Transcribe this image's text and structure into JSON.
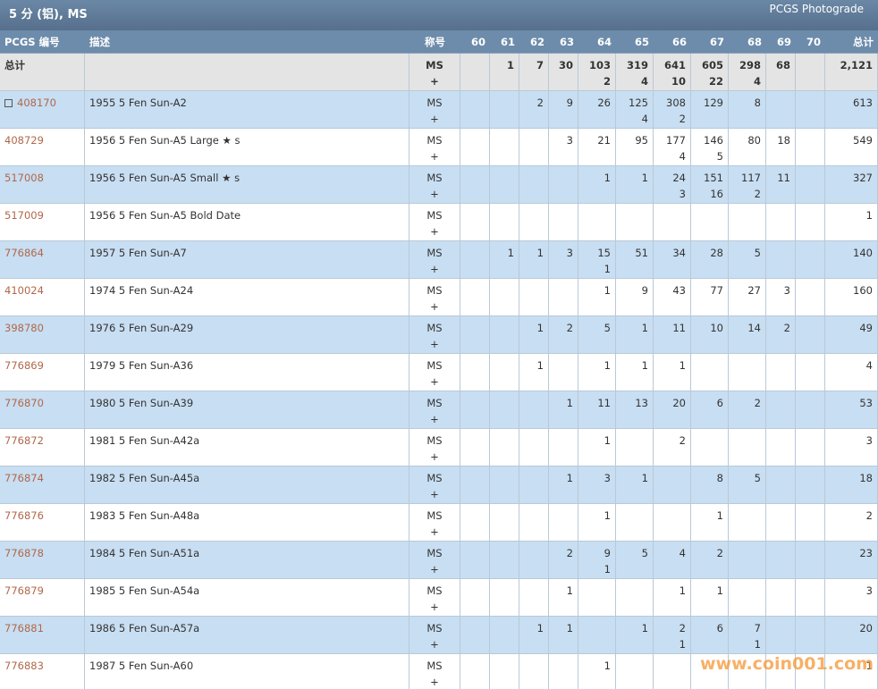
{
  "header": {
    "title": "5 分 (铝), MS",
    "photograde": "PCGS Photograde"
  },
  "table": {
    "columns": [
      "PCGS 编号",
      "描述",
      "称号",
      "60",
      "61",
      "62",
      "63",
      "64",
      "65",
      "66",
      "67",
      "68",
      "69",
      "70",
      "总计"
    ],
    "summary": {
      "label": "总计",
      "designation": [
        "MS",
        "+"
      ],
      "grades": [
        null,
        "1",
        "7",
        "30",
        [
          "103",
          "2"
        ],
        [
          "319",
          "4"
        ],
        [
          "641",
          "10"
        ],
        [
          "605",
          "22"
        ],
        [
          "298",
          "4"
        ],
        "68",
        null
      ],
      "total": "2,121"
    },
    "rows": [
      {
        "id": "408170",
        "description": "1955 5 Fen Sun-A2",
        "designation": [
          "MS",
          "+"
        ],
        "grades": [
          null,
          null,
          "2",
          "9",
          "26",
          [
            "125",
            "4"
          ],
          [
            "308",
            "2"
          ],
          "129",
          "8",
          null,
          null
        ],
        "total": "613"
      },
      {
        "id": "408729",
        "description": "1956 5 Fen Sun-A5 Large ★ s",
        "designation": [
          "MS",
          "+"
        ],
        "grades": [
          null,
          null,
          null,
          "3",
          "21",
          "95",
          [
            "177",
            "4"
          ],
          [
            "146",
            "5"
          ],
          "80",
          "18",
          null
        ],
        "total": "549"
      },
      {
        "id": "517008",
        "description": "1956 5 Fen Sun-A5 Small ★ s",
        "designation": [
          "MS",
          "+"
        ],
        "grades": [
          null,
          null,
          null,
          null,
          "1",
          "1",
          [
            "24",
            "3"
          ],
          [
            "151",
            "16"
          ],
          [
            "117",
            "2"
          ],
          "11",
          null
        ],
        "total": "327"
      },
      {
        "id": "517009",
        "description": "1956 5 Fen Sun-A5 Bold Date",
        "designation": [
          "MS",
          "+"
        ],
        "grades": [
          null,
          null,
          null,
          null,
          null,
          null,
          null,
          null,
          null,
          null,
          null
        ],
        "total": "1"
      },
      {
        "id": "776864",
        "description": "1957 5 Fen Sun-A7",
        "designation": [
          "MS",
          "+"
        ],
        "grades": [
          null,
          "1",
          "1",
          "3",
          [
            "15",
            "1"
          ],
          "51",
          "34",
          "28",
          "5",
          null,
          null
        ],
        "total": "140"
      },
      {
        "id": "410024",
        "description": "1974 5 Fen Sun-A24",
        "designation": [
          "MS",
          "+"
        ],
        "grades": [
          null,
          null,
          null,
          null,
          "1",
          "9",
          "43",
          "77",
          "27",
          "3",
          null
        ],
        "total": "160"
      },
      {
        "id": "398780",
        "description": "1976 5 Fen Sun-A29",
        "designation": [
          "MS",
          "+"
        ],
        "grades": [
          null,
          null,
          "1",
          "2",
          "5",
          "1",
          "11",
          "10",
          "14",
          "2",
          null
        ],
        "total": "49"
      },
      {
        "id": "776869",
        "description": "1979 5 Fen Sun-A36",
        "designation": [
          "MS",
          "+"
        ],
        "grades": [
          null,
          null,
          "1",
          null,
          "1",
          "1",
          "1",
          null,
          null,
          null,
          null
        ],
        "total": "4"
      },
      {
        "id": "776870",
        "description": "1980 5 Fen Sun-A39",
        "designation": [
          "MS",
          "+"
        ],
        "grades": [
          null,
          null,
          null,
          "1",
          "11",
          "13",
          "20",
          "6",
          "2",
          null,
          null
        ],
        "total": "53"
      },
      {
        "id": "776872",
        "description": "1981 5 Fen Sun-A42a",
        "designation": [
          "MS",
          "+"
        ],
        "grades": [
          null,
          null,
          null,
          null,
          "1",
          null,
          "2",
          null,
          null,
          null,
          null
        ],
        "total": "3"
      },
      {
        "id": "776874",
        "description": "1982 5 Fen Sun-A45a",
        "designation": [
          "MS",
          "+"
        ],
        "grades": [
          null,
          null,
          null,
          "1",
          "3",
          "1",
          null,
          "8",
          "5",
          null,
          null
        ],
        "total": "18"
      },
      {
        "id": "776876",
        "description": "1983 5 Fen Sun-A48a",
        "designation": [
          "MS",
          "+"
        ],
        "grades": [
          null,
          null,
          null,
          null,
          "1",
          null,
          null,
          "1",
          null,
          null,
          null
        ],
        "total": "2"
      },
      {
        "id": "776878",
        "description": "1984 5 Fen Sun-A51a",
        "designation": [
          "MS",
          "+"
        ],
        "grades": [
          null,
          null,
          null,
          "2",
          [
            "9",
            "1"
          ],
          "5",
          "4",
          "2",
          null,
          null,
          null
        ],
        "total": "23"
      },
      {
        "id": "776879",
        "description": "1985 5 Fen Sun-A54a",
        "designation": [
          "MS",
          "+"
        ],
        "grades": [
          null,
          null,
          null,
          "1",
          null,
          null,
          "1",
          "1",
          null,
          null,
          null
        ],
        "total": "3"
      },
      {
        "id": "776881",
        "description": "1986 5 Fen Sun-A57a",
        "designation": [
          "MS",
          "+"
        ],
        "grades": [
          null,
          null,
          "1",
          "1",
          null,
          "1",
          [
            "2",
            "1"
          ],
          "6",
          [
            "7",
            "1"
          ],
          null,
          null
        ],
        "total": "20"
      },
      {
        "id": "776883",
        "description": "1987 5 Fen Sun-A60",
        "designation": [
          "MS",
          "+"
        ],
        "grades": [
          null,
          null,
          null,
          null,
          "1",
          null,
          null,
          null,
          null,
          null,
          null
        ],
        "total": "1"
      }
    ]
  },
  "watermark": "www.coin001.com"
}
